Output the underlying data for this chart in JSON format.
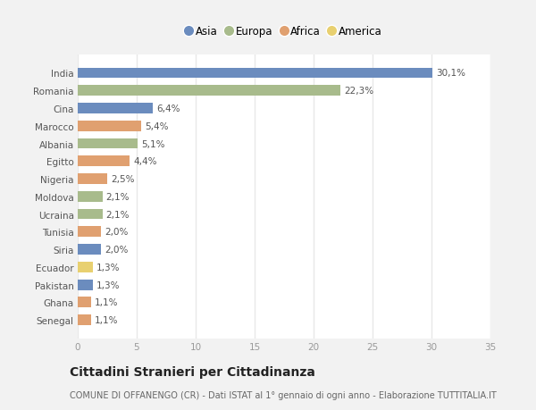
{
  "countries": [
    "India",
    "Romania",
    "Cina",
    "Marocco",
    "Albania",
    "Egitto",
    "Nigeria",
    "Moldova",
    "Ucraina",
    "Tunisia",
    "Siria",
    "Ecuador",
    "Pakistan",
    "Ghana",
    "Senegal"
  ],
  "values": [
    30.1,
    22.3,
    6.4,
    5.4,
    5.1,
    4.4,
    2.5,
    2.1,
    2.1,
    2.0,
    2.0,
    1.3,
    1.3,
    1.1,
    1.1
  ],
  "labels": [
    "30,1%",
    "22,3%",
    "6,4%",
    "5,4%",
    "5,1%",
    "4,4%",
    "2,5%",
    "2,1%",
    "2,1%",
    "2,0%",
    "2,0%",
    "1,3%",
    "1,3%",
    "1,1%",
    "1,1%"
  ],
  "continents": [
    "Asia",
    "Europa",
    "Asia",
    "Africa",
    "Europa",
    "Africa",
    "Africa",
    "Europa",
    "Europa",
    "Africa",
    "Asia",
    "America",
    "Asia",
    "Africa",
    "Africa"
  ],
  "colors": {
    "Asia": "#6b8cbe",
    "Europa": "#a8bb8c",
    "Africa": "#e0a070",
    "America": "#e8d070"
  },
  "bg_color": "#f2f2f2",
  "plot_bg_color": "#ffffff",
  "grid_color": "#e8e8e8",
  "title": "Cittadini Stranieri per Cittadinanza",
  "subtitle": "COMUNE DI OFFANENGO (CR) - Dati ISTAT al 1° gennaio di ogni anno - Elaborazione TUTTITALIA.IT",
  "xlim": [
    0,
    35
  ],
  "xticks": [
    0,
    5,
    10,
    15,
    20,
    25,
    30,
    35
  ],
  "label_fontsize": 7.5,
  "title_fontsize": 10,
  "subtitle_fontsize": 7,
  "tick_fontsize": 7.5,
  "ytick_fontsize": 7.5,
  "legend_fontsize": 8.5,
  "bar_height": 0.6
}
